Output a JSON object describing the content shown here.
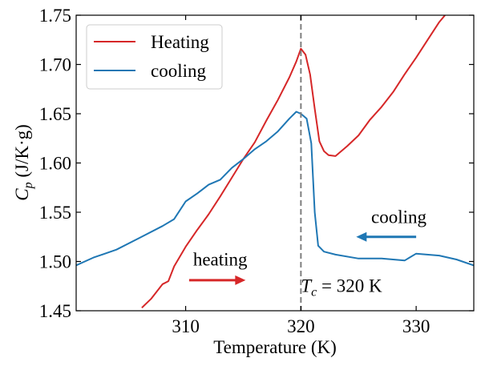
{
  "chart_data": {
    "type": "line",
    "title": "",
    "xlabel": "Temperature (K)",
    "ylabel_main": "C",
    "ylabel_sub": "p",
    "ylabel_unit": " (J/K·g)",
    "xlim": [
      300.5,
      335
    ],
    "ylim": [
      1.45,
      1.75
    ],
    "x_ticks": [
      310,
      320,
      330
    ],
    "x_tick_labels": [
      "310",
      "320",
      "330"
    ],
    "y_ticks": [
      1.45,
      1.5,
      1.55,
      1.6,
      1.65,
      1.7,
      1.75
    ],
    "y_tick_labels": [
      "1.45",
      "1.50",
      "1.55",
      "1.60",
      "1.65",
      "1.70",
      "1.75"
    ],
    "grid": false,
    "legend_position": "top-left",
    "series": [
      {
        "name": "Heating",
        "color": "#d62728",
        "x": [
          306.2,
          307.0,
          308.0,
          308.5,
          309.0,
          310.0,
          311.0,
          312.0,
          313.0,
          314.0,
          315.0,
          316.0,
          317.0,
          318.0,
          319.0,
          319.6,
          320.0,
          320.4,
          320.8,
          321.2,
          321.6,
          322.0,
          322.4,
          323.0,
          324.0,
          325.0,
          326.0,
          327.0,
          328.0,
          329.0,
          330.0,
          331.0,
          332.0,
          332.5
        ],
        "y": [
          1.453,
          1.462,
          1.477,
          1.48,
          1.495,
          1.515,
          1.532,
          1.548,
          1.566,
          1.585,
          1.604,
          1.621,
          1.643,
          1.664,
          1.687,
          1.703,
          1.716,
          1.71,
          1.69,
          1.655,
          1.622,
          1.612,
          1.608,
          1.607,
          1.617,
          1.628,
          1.644,
          1.657,
          1.672,
          1.69,
          1.707,
          1.725,
          1.743,
          1.75
        ]
      },
      {
        "name": "cooling",
        "color": "#1f77b4",
        "x": [
          300.5,
          302.0,
          304.0,
          306.0,
          308.0,
          309.0,
          310.0,
          311.0,
          312.0,
          313.0,
          314.0,
          315.0,
          316.0,
          317.0,
          318.0,
          319.0,
          319.6,
          320.0,
          320.5,
          320.9,
          321.2,
          321.5,
          322.0,
          323.0,
          325.0,
          327.0,
          329.0,
          330.0,
          332.0,
          333.5,
          335.0
        ],
        "y": [
          1.496,
          1.504,
          1.512,
          1.524,
          1.536,
          1.543,
          1.561,
          1.569,
          1.578,
          1.583,
          1.595,
          1.604,
          1.614,
          1.622,
          1.632,
          1.645,
          1.652,
          1.65,
          1.645,
          1.62,
          1.55,
          1.516,
          1.51,
          1.507,
          1.503,
          1.503,
          1.501,
          1.508,
          1.506,
          1.502,
          1.496
        ]
      }
    ],
    "annotations": {
      "vline_x": 320,
      "vline_color": "#7f7f7f",
      "tc_symbol": "T",
      "tc_sub": "c",
      "tc_value": " =  320 K",
      "heating_text": "heating",
      "cooling_text": "cooling",
      "heating_arrow_from": [
        310.3,
        1.481
      ],
      "heating_arrow_to": [
        315.2,
        1.481
      ],
      "cooling_arrow_from": [
        330.0,
        1.525
      ],
      "cooling_arrow_to": [
        324.8,
        1.525
      ],
      "heating_text_at": [
        313.0,
        1.496
      ],
      "cooling_text_at": [
        328.5,
        1.539
      ],
      "tc_text_at": [
        320.0,
        1.469
      ]
    }
  }
}
